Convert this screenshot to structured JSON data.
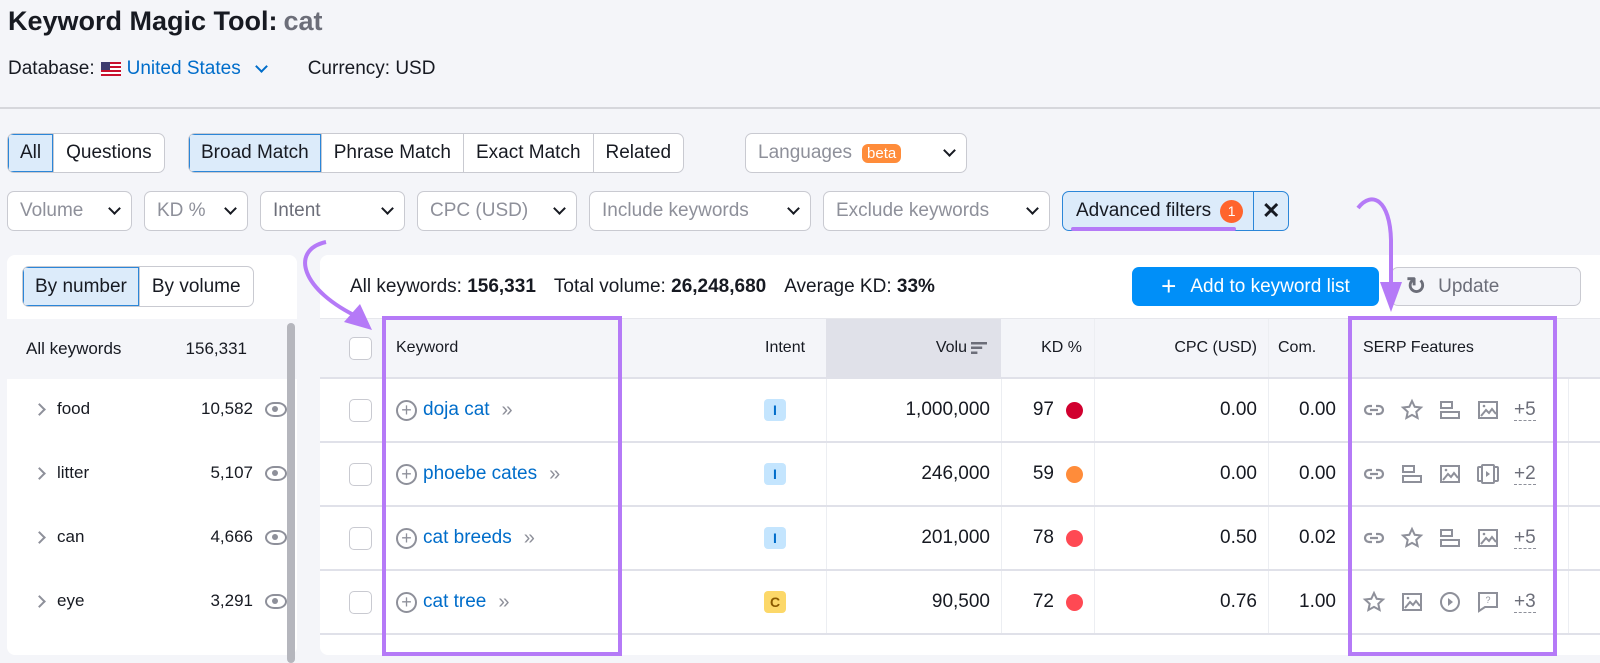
{
  "header": {
    "title": "Keyword Magic Tool:",
    "query": "cat",
    "database_label": "Database:",
    "database_value": "United States",
    "currency": "Currency: USD"
  },
  "match_tabs": {
    "scope": [
      {
        "label": "All",
        "active": true
      },
      {
        "label": "Questions",
        "active": false
      }
    ],
    "match": [
      {
        "label": "Broad Match",
        "active": true
      },
      {
        "label": "Phrase Match",
        "active": false
      },
      {
        "label": "Exact Match",
        "active": false
      },
      {
        "label": "Related",
        "active": false
      }
    ],
    "languages": "Languages",
    "beta": "beta"
  },
  "filters": {
    "volume": "Volume",
    "kd": "KD %",
    "intent": "Intent",
    "cpc": "CPC (USD)",
    "include": "Include keywords",
    "exclude": "Exclude keywords",
    "advanced": "Advanced filters",
    "advanced_count": "1",
    "clear": "✕"
  },
  "groups": {
    "toggle": [
      {
        "label": "By number",
        "active": true
      },
      {
        "label": "By volume",
        "active": false
      }
    ],
    "all_label": "All keywords",
    "all_count": "156,331",
    "items": [
      {
        "name": "food",
        "count": "10,582"
      },
      {
        "name": "litter",
        "count": "5,107"
      },
      {
        "name": "can",
        "count": "4,666"
      },
      {
        "name": "eye",
        "count": "3,291"
      }
    ]
  },
  "summary": {
    "all_label": "All keywords:",
    "all_value": "156,331",
    "vol_label": "Total volume:",
    "vol_value": "26,248,680",
    "kd_label": "Average KD:",
    "kd_value": "33%"
  },
  "actions": {
    "add": "Add to keyword list",
    "update": "Update"
  },
  "table": {
    "columns": {
      "keyword": "Keyword",
      "intent": "Intent",
      "volume": "Volu",
      "kd": "KD %",
      "cpc": "CPC (USD)",
      "com": "Com.",
      "serp": "SERP Features"
    },
    "rows": [
      {
        "keyword": "doja cat",
        "intent": "I",
        "volume": "1,000,000",
        "kd": "97",
        "kd_color": "#d1002f",
        "cpc": "0.00",
        "com": "0.00",
        "serp": [
          "link-icon",
          "star-icon",
          "featured-snippet-icon",
          "image-icon"
        ],
        "more": "+5"
      },
      {
        "keyword": "phoebe cates",
        "intent": "I",
        "volume": "246,000",
        "kd": "59",
        "kd_color": "#ff8c3a",
        "cpc": "0.00",
        "com": "0.00",
        "serp": [
          "link-icon",
          "featured-snippet-icon",
          "image-icon",
          "video-carousel-icon"
        ],
        "more": "+2"
      },
      {
        "keyword": "cat breeds",
        "intent": "I",
        "volume": "201,000",
        "kd": "78",
        "kd_color": "#ff4953",
        "cpc": "0.50",
        "com": "0.02",
        "serp": [
          "link-icon",
          "star-icon",
          "featured-snippet-icon",
          "image-icon"
        ],
        "more": "+5"
      },
      {
        "keyword": "cat tree",
        "intent": "C",
        "volume": "90,500",
        "kd": "72",
        "kd_color": "#ff4953",
        "cpc": "0.76",
        "com": "1.00",
        "serp": [
          "star-icon",
          "image-icon",
          "video-icon",
          "question-icon"
        ],
        "more": "+3"
      }
    ]
  },
  "colors": {
    "accent": "#008ff8",
    "link": "#006dca",
    "highlight": "#b57af7",
    "intent_I_bg": "#c4e5fe",
    "intent_I_fg": "#006dca",
    "intent_C_bg": "#fcd869",
    "intent_C_fg": "#8a5a00"
  }
}
